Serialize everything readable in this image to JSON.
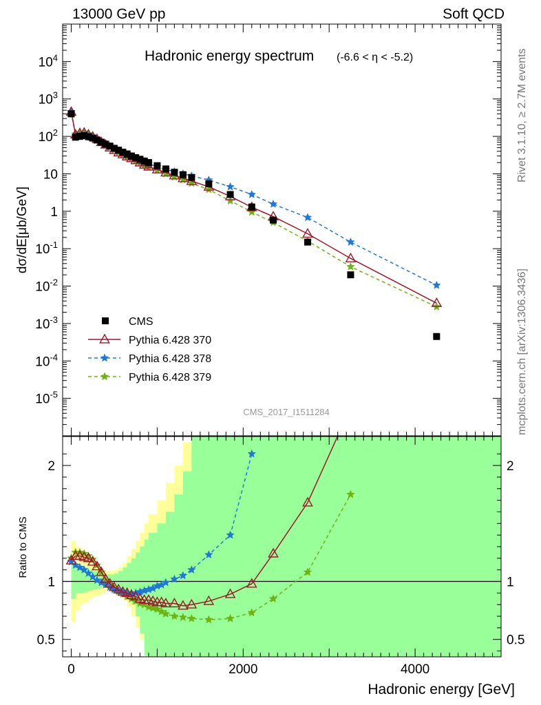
{
  "header": {
    "left": "13000 GeV pp",
    "right": "Soft QCD"
  },
  "side_labels": {
    "rivet": "Rivet 3.1.10, ≥ 2.7M events",
    "mcplots": "mcplots.cern.ch [arXiv:1306.3436]"
  },
  "analysis_tag": "CMS_2017_I1511284",
  "colors": {
    "cms": "#000000",
    "p370": "#a01528",
    "p378": "#1f77d8",
    "p379": "#6eb410",
    "band_green": "#99ff99",
    "band_yellow": "#ffff99"
  },
  "chart_data": [
    {
      "type": "line",
      "title": "Hadronic energy spectrum",
      "title_suffix": "(-6.6 < η < -5.2)",
      "ylabel": "dσ/dE[μb/GeV]",
      "y_scale": "log",
      "ylim": [
        1e-06,
        100000
      ],
      "xlim": [
        -100,
        5000
      ],
      "y_tick_labels": [
        "10^-5",
        "10^-4",
        "10^-3",
        "10^-2",
        "10^-1",
        "1",
        "10",
        "10^2",
        "10^3",
        "10^4"
      ],
      "legend_position": "lower-left",
      "series": [
        {
          "name": "CMS",
          "style": "square",
          "x": [
            0,
            50,
            100,
            150,
            200,
            250,
            300,
            350,
            400,
            450,
            500,
            550,
            600,
            650,
            700,
            750,
            800,
            850,
            900,
            1000,
            1100,
            1200,
            1300,
            1400,
            1600,
            1850,
            2100,
            2350,
            2750,
            3250,
            4250
          ],
          "y": [
            400,
            95,
            100,
            105,
            98,
            90,
            80,
            70,
            62,
            55,
            48,
            43,
            38,
            34,
            30,
            27,
            24.5,
            22,
            20,
            16.5,
            13.5,
            11,
            9.5,
            8,
            5.4,
            2.8,
            1.3,
            0.58,
            0.15,
            0.02,
            0.00045
          ]
        },
        {
          "name": "Pythia 6.428 370",
          "style": "triangle-solid",
          "x": [
            0,
            50,
            100,
            150,
            200,
            250,
            300,
            350,
            400,
            450,
            500,
            550,
            600,
            650,
            700,
            750,
            800,
            850,
            900,
            1000,
            1100,
            1200,
            1300,
            1400,
            1600,
            1850,
            2100,
            2350,
            2750,
            3250,
            4250
          ],
          "y": [
            450,
            112,
            122,
            125,
            112,
            98,
            84,
            70,
            60,
            50,
            43,
            37,
            33,
            29,
            26,
            23,
            20,
            17.5,
            15.5,
            13,
            10.8,
            9,
            7.6,
            6.4,
            4.5,
            2.5,
            1.28,
            0.72,
            0.25,
            0.055,
            0.0035
          ]
        },
        {
          "name": "Pythia 6.428 378",
          "style": "star-dashed",
          "x": [
            0,
            50,
            100,
            150,
            200,
            250,
            300,
            350,
            400,
            450,
            500,
            550,
            600,
            650,
            700,
            750,
            800,
            850,
            900,
            1000,
            1100,
            1200,
            1300,
            1400,
            1600,
            1850,
            2100,
            2350,
            2750,
            3250,
            4250
          ],
          "y": [
            450,
            105,
            110,
            112,
            103,
            92,
            80,
            69,
            60,
            52,
            45,
            40,
            35,
            31,
            28,
            25,
            22.5,
            20.5,
            18.5,
            15.5,
            13,
            11.5,
            10,
            8.8,
            6.8,
            4.5,
            2.8,
            1.55,
            0.68,
            0.15,
            0.0105
          ]
        },
        {
          "name": "Pythia 6.428 379",
          "style": "star-dashed",
          "x": [
            0,
            50,
            100,
            150,
            200,
            250,
            300,
            350,
            400,
            450,
            500,
            550,
            600,
            650,
            700,
            750,
            800,
            850,
            900,
            1000,
            1100,
            1200,
            1300,
            1400,
            1600,
            1850,
            2100,
            2350,
            2750,
            3250,
            4250
          ],
          "y": [
            460,
            115,
            125,
            128,
            115,
            100,
            85,
            71,
            60,
            51,
            43,
            37,
            32,
            28,
            25,
            22,
            19.5,
            17,
            15,
            12.5,
            10,
            8.2,
            6.9,
            5.6,
            3.8,
            1.9,
            0.95,
            0.5,
            0.16,
            0.033,
            0.0028
          ]
        }
      ]
    },
    {
      "type": "line",
      "ylabel": "Ratio to CMS",
      "xlabel": "Hadronic energy [GeV]",
      "xlim": [
        -100,
        5000
      ],
      "ylim": [
        0.35,
        2.25
      ],
      "x_tick_labels": [
        "0",
        "2000",
        "4000"
      ],
      "y_tick_labels": [
        "0.5",
        "1",
        "2"
      ],
      "reference_line": 1,
      "series": [
        {
          "name": "Pythia 6.428 370",
          "x": [
            0,
            50,
            100,
            150,
            200,
            250,
            300,
            350,
            400,
            450,
            500,
            550,
            600,
            650,
            700,
            750,
            800,
            850,
            900,
            950,
            1000,
            1050,
            1100,
            1200,
            1300,
            1400,
            1600,
            1850,
            2100,
            2350,
            2750,
            3250
          ],
          "y": [
            1.18,
            1.22,
            1.22,
            1.21,
            1.2,
            1.17,
            1.13,
            1.08,
            1.02,
            0.98,
            0.95,
            0.93,
            0.91,
            0.9,
            0.88,
            0.87,
            0.85,
            0.84,
            0.84,
            0.83,
            0.82,
            0.82,
            0.81,
            0.81,
            0.79,
            0.8,
            0.83,
            0.89,
            0.98,
            1.24,
            1.68,
            2.5
          ]
        },
        {
          "name": "Pythia 6.428 378",
          "x": [
            0,
            50,
            100,
            150,
            200,
            250,
            300,
            350,
            400,
            450,
            500,
            550,
            600,
            650,
            700,
            750,
            800,
            850,
            900,
            950,
            1000,
            1050,
            1100,
            1200,
            1300,
            1400,
            1600,
            1850,
            2100
          ],
          "y": [
            1.17,
            1.14,
            1.12,
            1.1,
            1.07,
            1.04,
            1.01,
            0.99,
            0.97,
            0.95,
            0.93,
            0.92,
            0.91,
            0.9,
            0.9,
            0.9,
            0.91,
            0.92,
            0.93,
            0.94,
            0.96,
            0.97,
            0.99,
            1.02,
            1.05,
            1.1,
            1.23,
            1.4,
            2.1
          ]
        },
        {
          "name": "Pythia 6.428 379",
          "x": [
            0,
            50,
            100,
            150,
            200,
            250,
            300,
            350,
            400,
            450,
            500,
            550,
            600,
            650,
            700,
            750,
            800,
            850,
            900,
            950,
            1000,
            1050,
            1100,
            1200,
            1300,
            1400,
            1600,
            1850,
            2100,
            2350,
            2750,
            3250
          ],
          "y": [
            1.2,
            1.25,
            1.25,
            1.24,
            1.22,
            1.19,
            1.14,
            1.08,
            1.01,
            0.97,
            0.94,
            0.91,
            0.89,
            0.87,
            0.85,
            0.83,
            0.81,
            0.8,
            0.78,
            0.77,
            0.76,
            0.74,
            0.72,
            0.7,
            0.69,
            0.68,
            0.67,
            0.68,
            0.73,
            0.85,
            1.08,
            1.75
          ]
        }
      ],
      "uncertainty_bands": {
        "x_edges": [
          0,
          50,
          100,
          150,
          200,
          250,
          300,
          350,
          400,
          450,
          500,
          550,
          600,
          650,
          700,
          750,
          800,
          850,
          900,
          1000,
          1100,
          1200,
          1300,
          1400,
          1500,
          1700,
          1950,
          2200,
          2500,
          3000,
          3500,
          4000,
          5000
        ],
        "green_lo": [
          0.85,
          0.9,
          0.9,
          0.91,
          0.92,
          0.93,
          0.94,
          0.95,
          0.96,
          0.96,
          0.95,
          0.93,
          0.9,
          0.86,
          0.8,
          0.7,
          0.55,
          0.36,
          0.3,
          0.3,
          0.3,
          0.3,
          0.3,
          0.3,
          0.3,
          0.3,
          0.3,
          0.3,
          0.3,
          0.3,
          0.3,
          0.3
        ],
        "green_hi": [
          1.15,
          1.14,
          1.13,
          1.12,
          1.1,
          1.09,
          1.08,
          1.07,
          1.06,
          1.06,
          1.07,
          1.09,
          1.12,
          1.16,
          1.2,
          1.25,
          1.3,
          1.36,
          1.42,
          1.5,
          1.6,
          1.75,
          1.95,
          2.3,
          2.5,
          2.5,
          2.5,
          2.5,
          2.5,
          2.5,
          2.5,
          2.5
        ],
        "yellow_lo": [
          0.65,
          0.75,
          0.8,
          0.82,
          0.85,
          0.87,
          0.88,
          0.9,
          0.92,
          0.92,
          0.9,
          0.88,
          0.84,
          0.78,
          0.7,
          0.6,
          0.5,
          0.38,
          0.3,
          0.3,
          0.3,
          0.3,
          0.3,
          0.3,
          0.3,
          0.3,
          0.3,
          0.3,
          0.3,
          0.3,
          0.3,
          0.3
        ],
        "yellow_hi": [
          1.35,
          1.3,
          1.26,
          1.22,
          1.18,
          1.14,
          1.12,
          1.1,
          1.09,
          1.09,
          1.1,
          1.12,
          1.16,
          1.22,
          1.28,
          1.35,
          1.42,
          1.5,
          1.58,
          1.7,
          1.85,
          2.0,
          2.2,
          2.5,
          2.5,
          2.5,
          2.5,
          2.5,
          2.5,
          2.5,
          2.5,
          2.5
        ]
      }
    }
  ]
}
